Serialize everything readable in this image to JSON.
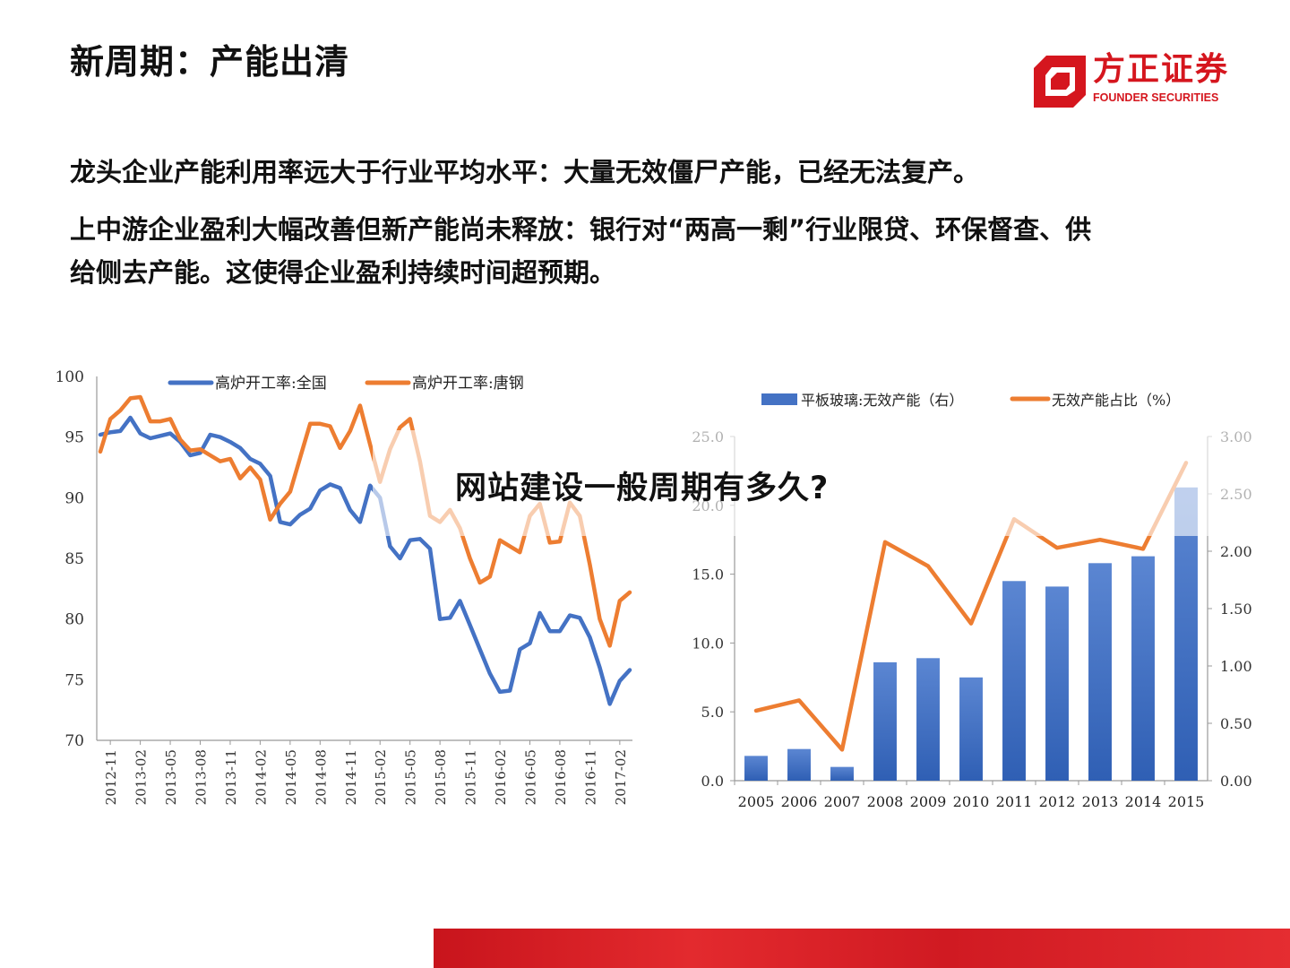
{
  "slide": {
    "title": "新周期：产能出清",
    "bullets": [
      "龙头企业产能利用率远大于行业平均水平：大量无效僵尸产能，已经无法复产。",
      "上中游企业盈利大幅改善但新产能尚未释放：银行对“两高一剩”行业限贷、环保督查、供",
      "给侧去产能。这使得企业盈利持续时间超预期。"
    ]
  },
  "logo": {
    "name": "方正证券",
    "english": "FOUNDER SECURITIES",
    "color": "#d5161e"
  },
  "overlay": {
    "text": "网站建设一般周期有多久?"
  },
  "colors": {
    "blue": "#4472c4",
    "orange": "#ed7d31",
    "brand_red": "#d5161e"
  },
  "chart_data": [
    {
      "type": "line",
      "x_tick_labels": [
        "2012-11",
        "2013-02",
        "2013-05",
        "2013-08",
        "2013-11",
        "2014-02",
        "2014-05",
        "2014-08",
        "2014-11",
        "2015-02",
        "2015-05",
        "2015-08",
        "2015-11",
        "2016-02",
        "2016-05",
        "2016-08",
        "2016-11",
        "2017-02"
      ],
      "x": [
        "2012-10",
        "2012-11",
        "2012-12",
        "2013-01",
        "2013-02",
        "2013-03",
        "2013-04",
        "2013-05",
        "2013-06",
        "2013-07",
        "2013-08",
        "2013-09",
        "2013-10",
        "2013-11",
        "2013-12",
        "2014-01",
        "2014-02",
        "2014-03",
        "2014-04",
        "2014-05",
        "2014-06",
        "2014-07",
        "2014-08",
        "2014-09",
        "2014-10",
        "2014-11",
        "2014-12",
        "2015-01",
        "2015-02",
        "2015-03",
        "2015-04",
        "2015-05",
        "2015-06",
        "2015-07",
        "2015-08",
        "2015-09",
        "2015-10",
        "2015-11",
        "2015-12",
        "2016-01",
        "2016-02",
        "2016-03",
        "2016-04",
        "2016-05",
        "2016-06",
        "2016-07",
        "2016-08",
        "2016-09",
        "2016-10",
        "2016-11",
        "2016-12",
        "2017-01",
        "2017-02",
        "2017-03"
      ],
      "series": [
        {
          "name": "高炉开工率:全国",
          "color": "#4472c4",
          "values": [
            95.2,
            95.4,
            95.5,
            96.6,
            95.3,
            94.9,
            95.1,
            95.3,
            94.6,
            93.5,
            93.7,
            95.2,
            95.0,
            94.6,
            94.1,
            93.2,
            92.8,
            91.8,
            88.0,
            87.8,
            88.6,
            89.1,
            90.6,
            91.1,
            90.8,
            89.0,
            88.0,
            91.0,
            90.0,
            86.0,
            85.0,
            86.5,
            86.6,
            85.8,
            80.0,
            80.1,
            81.5,
            79.5,
            77.5,
            75.5,
            74.0,
            74.1,
            77.5,
            78.0,
            80.5,
            79.0,
            79.0,
            80.3,
            80.1,
            78.5,
            76.0,
            73.0,
            74.9,
            75.8
          ]
        },
        {
          "name": "高炉开工率:唐钢",
          "color": "#ed7d31",
          "values": [
            93.8,
            96.5,
            97.2,
            98.2,
            98.3,
            96.3,
            96.3,
            96.5,
            94.8,
            93.9,
            94.0,
            93.5,
            93.0,
            93.2,
            91.6,
            92.5,
            91.5,
            88.2,
            89.5,
            90.5,
            93.3,
            96.1,
            96.1,
            95.9,
            94.1,
            95.5,
            97.6,
            94.4,
            91.3,
            94.0,
            95.8,
            96.5,
            93.0,
            88.5,
            88.0,
            89.0,
            87.5,
            85.0,
            83.0,
            83.5,
            86.5,
            86.0,
            85.5,
            88.5,
            89.5,
            86.3,
            86.4,
            89.6,
            88.5,
            84.5,
            80.0,
            77.8,
            81.5,
            82.2
          ]
        }
      ],
      "ylim": [
        70,
        100
      ],
      "y_ticks": [
        70,
        75,
        80,
        85,
        90,
        95,
        100
      ],
      "legend": "top",
      "grid": false
    },
    {
      "type": "bar",
      "categories": [
        "2005",
        "2006",
        "2007",
        "2008",
        "2009",
        "2010",
        "2011",
        "2012",
        "2013",
        "2014",
        "2015"
      ],
      "series": [
        {
          "name": "平板玻璃:无效产能（右）",
          "type": "bar",
          "color": "#4472c4",
          "values": [
            1.8,
            2.3,
            1.0,
            8.6,
            8.9,
            7.5,
            14.5,
            14.1,
            15.8,
            16.3,
            21.3
          ]
        },
        {
          "name": "无效产能占比（%）",
          "type": "line",
          "color": "#ed7d31",
          "values": [
            0.61,
            0.7,
            0.27,
            2.08,
            1.87,
            1.37,
            2.28,
            2.03,
            2.1,
            2.02,
            2.77
          ]
        }
      ],
      "y_left": {
        "lim": [
          0,
          25
        ],
        "ticks": [
          "0.0",
          "5.0",
          "10.0",
          "15.0",
          "20.0",
          "25.0"
        ]
      },
      "y_right": {
        "lim": [
          0,
          3
        ],
        "ticks": [
          "0.00",
          "0.50",
          "1.00",
          "1.50",
          "2.00",
          "2.50",
          "3.00"
        ]
      },
      "legend": "top",
      "grid": false
    }
  ]
}
